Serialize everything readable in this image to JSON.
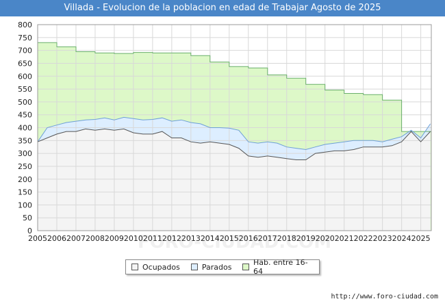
{
  "header": {
    "title": "Villada - Evolucion de la poblacion en edad de Trabajar Agosto de 2025"
  },
  "footer": {
    "source": "http://www.foro-ciudad.com"
  },
  "watermark": "FORO-CIUDAD.COM",
  "chart_data": {
    "type": "area",
    "title": "Villada - Evolucion de la poblacion en edad de Trabajar Agosto de 2025",
    "xlabel": "",
    "ylabel": "",
    "ylim": [
      0,
      800
    ],
    "xlim": [
      2005,
      2025.55
    ],
    "yticks": [
      0,
      50,
      100,
      150,
      200,
      250,
      300,
      350,
      400,
      450,
      500,
      550,
      600,
      650,
      700,
      750,
      800
    ],
    "xticks": [
      "2005",
      "2006",
      "2007",
      "2008",
      "2009",
      "2010",
      "2011",
      "2012",
      "2013",
      "2014",
      "2015",
      "2016",
      "2017",
      "2018",
      "2019",
      "2020",
      "2021",
      "2022",
      "2023",
      "2024",
      "2025"
    ],
    "grid": true,
    "legend": "bottom-center",
    "colors": {
      "ocupados": "#f4f4f4",
      "parados": "#ddeeff",
      "hab": "#ddf8c8",
      "ocupados_line": "#555555",
      "parados_line": "#6e9fd6",
      "hab_line": "#6ab06a"
    },
    "series": [
      {
        "name": "Hab. entre 16-64",
        "step": true,
        "x": [
          2005,
          2006,
          2007,
          2008,
          2009,
          2010,
          2011,
          2012,
          2013,
          2014,
          2015,
          2016,
          2017,
          2018,
          2019,
          2020,
          2021,
          2022,
          2023,
          2024,
          2025
        ],
        "values": [
          730,
          714,
          695,
          690,
          688,
          692,
          690,
          690,
          680,
          655,
          637,
          632,
          605,
          592,
          568,
          546,
          533,
          528,
          507,
          385,
          385
        ]
      },
      {
        "name": "Parados",
        "x": [
          2005,
          2005.5,
          2006,
          2006.5,
          2007,
          2007.5,
          2008,
          2008.5,
          2009,
          2009.5,
          2010,
          2010.5,
          2011,
          2011.5,
          2012,
          2012.5,
          2013,
          2013.5,
          2014,
          2014.5,
          2015,
          2015.5,
          2016,
          2016.5,
          2017,
          2017.5,
          2018,
          2018.5,
          2019,
          2019.5,
          2020,
          2020.5,
          2021,
          2021.5,
          2022,
          2022.5,
          2023,
          2023.5,
          2024,
          2024.5,
          2025,
          2025.5
        ],
        "values": [
          345,
          400,
          410,
          420,
          425,
          430,
          432,
          438,
          430,
          440,
          435,
          430,
          432,
          438,
          425,
          430,
          420,
          415,
          400,
          400,
          398,
          390,
          345,
          340,
          345,
          340,
          325,
          320,
          315,
          325,
          335,
          340,
          345,
          350,
          350,
          350,
          345,
          355,
          365,
          390,
          360,
          415
        ]
      },
      {
        "name": "Ocupados",
        "x": [
          2005,
          2005.5,
          2006,
          2006.5,
          2007,
          2007.5,
          2008,
          2008.5,
          2009,
          2009.5,
          2010,
          2010.5,
          2011,
          2011.5,
          2012,
          2012.5,
          2013,
          2013.5,
          2014,
          2014.5,
          2015,
          2015.5,
          2016,
          2016.5,
          2017,
          2017.5,
          2018,
          2018.5,
          2019,
          2019.5,
          2020,
          2020.5,
          2021,
          2021.5,
          2022,
          2022.5,
          2023,
          2023.5,
          2024,
          2024.5,
          2025,
          2025.5
        ],
        "values": [
          345,
          360,
          375,
          385,
          385,
          395,
          390,
          395,
          390,
          395,
          380,
          375,
          375,
          385,
          360,
          360,
          345,
          340,
          345,
          340,
          335,
          320,
          290,
          285,
          290,
          285,
          280,
          275,
          275,
          300,
          305,
          310,
          310,
          315,
          325,
          325,
          325,
          330,
          345,
          385,
          345,
          385
        ]
      }
    ]
  }
}
